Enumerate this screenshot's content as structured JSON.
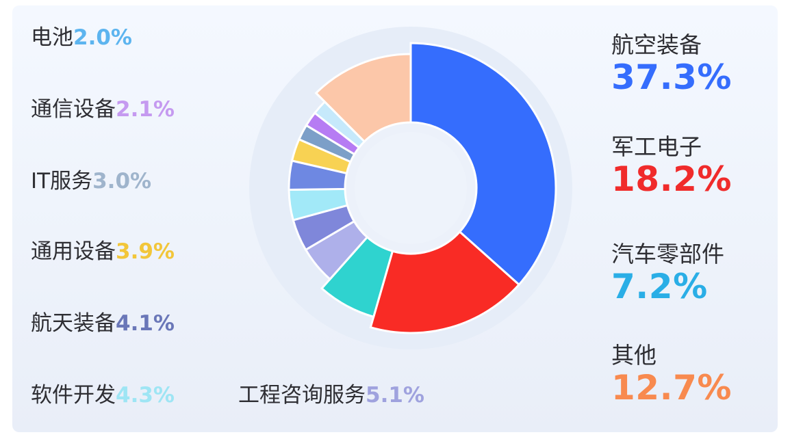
{
  "chart_data": {
    "type": "pie",
    "slices": [
      {
        "label": "航空装备",
        "percent_text": "37.3%",
        "value": 37.3,
        "color": "#356dfd",
        "label_color": "#356dfd"
      },
      {
        "label": "军工电子",
        "percent_text": "18.2%",
        "value": 18.2,
        "color": "#f92b25",
        "label_color": "#f02b2b"
      },
      {
        "label": "汽车零部件",
        "percent_text": "7.2%",
        "value": 7.2,
        "color": "#2fd3cf",
        "label_color": "#2aaee6"
      },
      {
        "label": "工程咨询服务",
        "percent_text": "5.1%",
        "value": 5.1,
        "color": "#aeb0ea",
        "label_color": "#9fa2de"
      },
      {
        "label": "软件开发",
        "percent_text": "4.3%",
        "value": 4.3,
        "color": "#7f87da",
        "label_color": "#9ee5f4"
      },
      {
        "label": "航天装备",
        "percent_text": "4.1%",
        "value": 4.1,
        "color": "#a2e9f8",
        "label_color": "#6a77b8"
      },
      {
        "label": "通用设备",
        "percent_text": "3.9%",
        "value": 3.9,
        "color": "#6e88e2",
        "label_color": "#f2c63a"
      },
      {
        "label": "IT服务",
        "percent_text": "3.0%",
        "value": 3.0,
        "color": "#f8d253",
        "label_color": "#9fb4cc"
      },
      {
        "label": "通信设备",
        "percent_text": "2.1%",
        "value": 2.1,
        "color": "#7c9fc8",
        "label_color": "#c59af0"
      },
      {
        "label": "电池",
        "percent_text": "2.0%",
        "value": 2.0,
        "color": "#b67cf3",
        "label_color": "#5cb4ef"
      },
      {
        "label": "",
        "percent_text": "",
        "value": 2.0,
        "color": "#c6e9fb",
        "label_color": ""
      },
      {
        "label": "其他",
        "percent_text": "12.7%",
        "value": 12.7,
        "color": "#fcc7a9",
        "label_color": "#f88a4f"
      }
    ],
    "legend": "split left and right of the donut",
    "inner_ring_color": "#ffffff"
  }
}
